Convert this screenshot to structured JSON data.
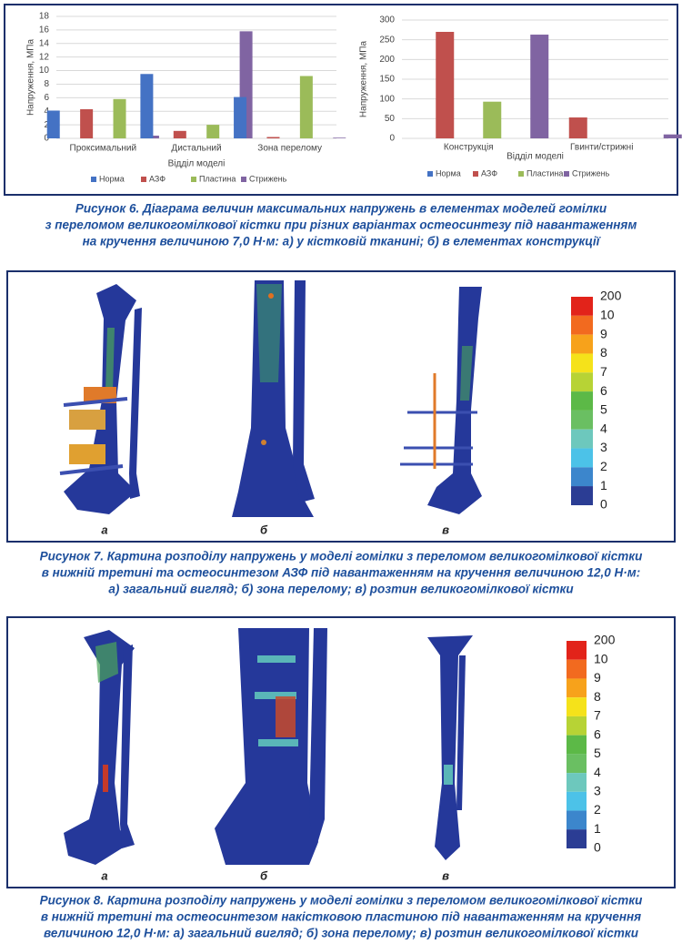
{
  "chart_data": [
    {
      "type": "bar",
      "ylabel": "Напруження, МПа",
      "xlabel": "Відділ моделі",
      "categories": [
        "Проксимальний",
        "Дистальний",
        "Зона перелому"
      ],
      "series": [
        {
          "name": "Норма",
          "color": "#4472c4",
          "values": [
            4.1,
            9.5,
            6.1
          ]
        },
        {
          "name": "АЗФ",
          "color": "#c0504d",
          "values": [
            4.3,
            1.1,
            0.2
          ]
        },
        {
          "name": "Пластина",
          "color": "#9bbb59",
          "values": [
            5.8,
            2.0,
            9.2
          ]
        },
        {
          "name": "Стрижень",
          "color": "#8064a2",
          "values": [
            0.4,
            15.8,
            0.1
          ]
        }
      ],
      "ylim": [
        0,
        18
      ],
      "yticks": [
        0,
        2,
        4,
        6,
        8,
        10,
        12,
        14,
        16,
        18
      ],
      "grid": true
    },
    {
      "type": "bar",
      "ylabel": "Напруження, МПа",
      "xlabel": "Відділ моделі",
      "categories": [
        "Конструкція",
        "Гвинти/стрижні"
      ],
      "series": [
        {
          "name": "Норма",
          "color": "#4472c4",
          "values": [
            0,
            0
          ]
        },
        {
          "name": "АЗФ",
          "color": "#c0504d",
          "values": [
            270,
            53
          ]
        },
        {
          "name": "Пластина",
          "color": "#9bbb59",
          "values": [
            93,
            0
          ]
        },
        {
          "name": "Стрижень",
          "color": "#8064a2",
          "values": [
            263,
            10
          ]
        }
      ],
      "ylim": [
        0,
        300
      ],
      "yticks": [
        0,
        50,
        100,
        150,
        200,
        250,
        300
      ],
      "grid": true
    }
  ],
  "figures": [
    {
      "caption": [
        "Рисунок 6. Діаграма величин максимальних напружень в елементах моделей гомілки",
        "з переломом великогомілкової кістки при різних варіантах остеосинтезу під навантаженням",
        "на кручення величиною 7,0 Н·м: а) у кістковій тканині; б) в елементах конструкції"
      ]
    },
    {
      "panels": [
        "а",
        "б",
        "в"
      ],
      "scale": [
        "200",
        "10",
        "9",
        "8",
        "7",
        "6",
        "5",
        "4",
        "3",
        "2",
        "1",
        "0"
      ],
      "caption": [
        "Рисунок 7. Картина розподілу напружень у моделі гомілки з переломом великогомілкової кістки",
        "в нижній третині та остеосинтезом АЗФ під навантаженням на кручення величиною 12,0 Н·м:",
        "а) загальний вигляд; б) зона перелому; в) розтин великогомілкової кістки"
      ]
    },
    {
      "panels": [
        "а",
        "б",
        "в"
      ],
      "scale": [
        "200",
        "10",
        "9",
        "8",
        "7",
        "6",
        "5",
        "4",
        "3",
        "2",
        "1",
        "0"
      ],
      "caption": [
        "Рисунок 8. Картина розподілу напружень у моделі гомілки з переломом великогомілкової кістки",
        "в нижній третині та остеосинтезом накістковою пластиною під навантаженням на кручення",
        "величиною 12,0 Н·м: а) загальний вигляд; б) зона перелому; в) розтин великогомілкової кістки"
      ]
    }
  ]
}
